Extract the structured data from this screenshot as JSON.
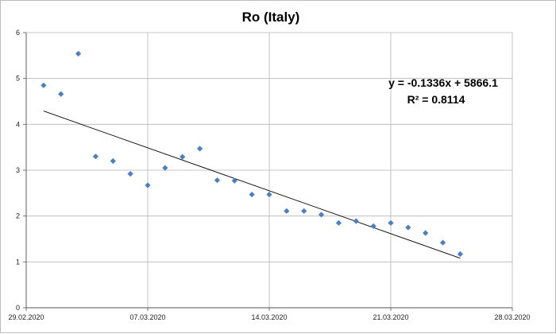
{
  "chart_data": {
    "type": "scatter",
    "title": "Ro (Italy)",
    "xlabel": "",
    "ylabel": "",
    "x_tick_labels": [
      "29.02.2020",
      "07.03.2020",
      "14.03.2020",
      "21.03.2020",
      "28.03.2020"
    ],
    "x_range_days": [
      0,
      28
    ],
    "ylim": [
      0,
      6
    ],
    "y_ticks": [
      0,
      1,
      2,
      3,
      4,
      5,
      6
    ],
    "grid": true,
    "marker_color": "#4a7fc1",
    "series": [
      {
        "x": [
          "2020-03-01",
          "2020-03-02",
          "2020-03-03",
          "2020-03-04",
          "2020-03-05",
          "2020-03-06",
          "2020-03-07",
          "2020-03-08",
          "2020-03-09",
          "2020-03-10",
          "2020-03-11",
          "2020-03-12",
          "2020-03-13",
          "2020-03-14",
          "2020-03-15",
          "2020-03-16",
          "2020-03-17",
          "2020-03-18",
          "2020-03-19",
          "2020-03-20",
          "2020-03-21",
          "2020-03-22",
          "2020-03-23",
          "2020-03-24",
          "2020-03-25"
        ],
        "y": [
          4.85,
          4.66,
          5.54,
          3.3,
          3.2,
          2.92,
          2.67,
          3.05,
          3.29,
          3.47,
          2.78,
          2.77,
          2.47,
          2.47,
          2.11,
          2.11,
          2.03,
          1.85,
          1.89,
          1.78,
          1.85,
          1.75,
          1.63,
          1.42,
          1.17
        ]
      }
    ],
    "trendline": {
      "type": "linear",
      "start": [
        "2020-03-01",
        4.29
      ],
      "end": [
        "2020-03-25",
        1.08
      ],
      "equation": "y = -0.1336x + 5866.1",
      "r_squared": "R² = 0.8114"
    }
  }
}
